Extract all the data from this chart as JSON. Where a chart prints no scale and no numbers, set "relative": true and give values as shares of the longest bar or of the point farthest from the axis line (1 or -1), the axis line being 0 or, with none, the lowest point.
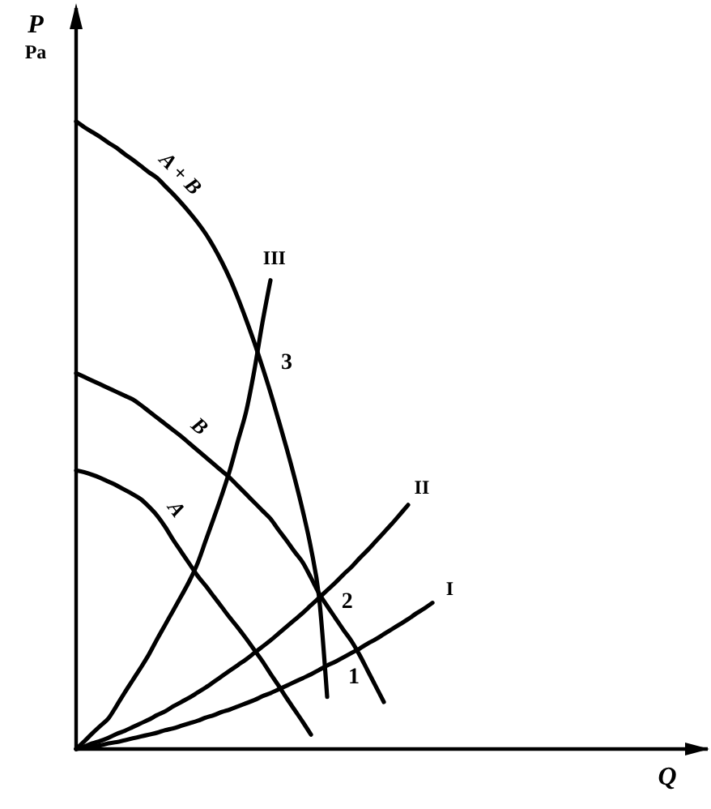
{
  "chart_data": {
    "type": "line",
    "relative": true,
    "ylabel": "P\nPa",
    "xlabel": "Q",
    "categories": [
      null,
      null,
      null,
      null,
      null,
      null,
      null,
      null,
      null,
      null,
      null,
      null,
      null,
      null,
      null,
      null,
      null,
      null,
      null,
      null,
      null,
      null,
      null,
      null,
      null,
      null,
      null,
      null,
      null,
      null,
      null,
      null,
      null,
      null,
      null,
      null,
      null,
      null,
      null,
      null,
      null,
      null,
      null,
      null,
      null,
      null,
      null,
      null,
      null,
      null,
      null,
      null,
      null,
      null,
      null,
      null,
      null,
      null,
      null,
      null,
      null,
      null,
      null,
      null,
      null,
      null,
      null,
      null,
      null,
      null,
      null,
      null,
      null,
      null,
      null,
      null,
      null,
      null,
      null
    ],
    "series": [
      {
        "name": "A + B",
        "color": "#000000",
        "values": [
          1,
          0.991,
          0.983,
          0.975,
          0.966,
          0.958,
          0.948,
          0.939,
          0.929,
          0.919,
          0.91,
          0.897,
          0.884,
          0.87,
          0.855,
          0.839,
          0.821,
          0.8,
          0.776,
          0.749,
          0.718,
          0.684,
          0.648,
          0.609,
          0.568,
          0.524,
          0.479,
          0.431,
          0.379,
          0.32,
          0.242,
          0.083,
          null,
          null,
          null,
          null,
          null,
          null,
          null,
          null,
          null,
          null,
          null,
          null,
          null,
          null,
          null,
          null,
          null,
          null,
          null,
          null,
          null,
          null,
          null,
          null,
          null,
          null,
          null,
          null,
          null,
          null,
          null,
          null,
          null,
          null,
          null,
          null,
          null,
          null,
          null,
          null,
          null,
          null,
          null,
          null,
          null,
          null,
          null
        ]
      },
      {
        "name": "B",
        "color": "#000000",
        "values": [
          0.599,
          0.593,
          0.587,
          0.581,
          0.575,
          0.569,
          0.563,
          0.557,
          0.548,
          0.538,
          0.528,
          0.518,
          0.508,
          0.498,
          0.487,
          0.476,
          0.465,
          0.454,
          0.443,
          0.432,
          0.419,
          0.406,
          0.393,
          0.38,
          0.367,
          0.349,
          0.332,
          0.314,
          0.297,
          0.273,
          0.248,
          0.228,
          0.209,
          0.19,
          0.172,
          0.15,
          0.125,
          0.1,
          0.075,
          null,
          null,
          null,
          null,
          null,
          null,
          null,
          null,
          null,
          null,
          null,
          null,
          null,
          null,
          null,
          null,
          null,
          null,
          null,
          null,
          null,
          null,
          null,
          null,
          null,
          null,
          null,
          null,
          null,
          null,
          null,
          null,
          null,
          null,
          null,
          null,
          null,
          null,
          null,
          null
        ]
      },
      {
        "name": "A",
        "color": "#000000",
        "values": [
          0.444,
          0.441,
          0.437,
          0.432,
          0.426,
          0.42,
          0.413,
          0.406,
          0.398,
          0.386,
          0.372,
          0.354,
          0.333,
          0.314,
          0.295,
          0.276,
          0.26,
          0.243,
          0.226,
          0.209,
          0.193,
          0.176,
          0.158,
          0.14,
          0.12,
          0.101,
          0.081,
          0.062,
          0.043,
          0.023,
          null,
          null,
          null,
          null,
          null,
          null,
          null,
          null,
          null,
          null,
          null,
          null,
          null,
          null,
          null,
          null,
          null,
          null,
          null,
          null,
          null,
          null,
          null,
          null,
          null,
          null,
          null,
          null,
          null,
          null,
          null,
          null,
          null,
          null,
          null,
          null,
          null,
          null,
          null,
          null,
          null,
          null,
          null,
          null,
          null,
          null,
          null,
          null,
          null
        ]
      },
      {
        "name": "III",
        "color": "#000000",
        "values": [
          0,
          0.012,
          0.025,
          0.037,
          0.049,
          0.069,
          0.09,
          0.11,
          0.13,
          0.151,
          0.175,
          0.198,
          0.221,
          0.244,
          0.268,
          0.296,
          0.332,
          0.368,
          0.405,
          0.445,
          0.492,
          0.538,
          0.603,
          0.679,
          0.747,
          null,
          null,
          null,
          null,
          null,
          null,
          null,
          null,
          null,
          null,
          null,
          null,
          null,
          null,
          null,
          null,
          null,
          null,
          null,
          null,
          null,
          null,
          null,
          null,
          null,
          null,
          null,
          null,
          null,
          null,
          null,
          null,
          null,
          null,
          null,
          null,
          null,
          null,
          null,
          null,
          null,
          null,
          null,
          null,
          null,
          null,
          null,
          null,
          null,
          null,
          null,
          null,
          null,
          null
        ]
      },
      {
        "name": "II",
        "color": "#000000",
        "values": [
          0,
          0.004,
          0.009,
          0.013,
          0.018,
          0.024,
          0.029,
          0.035,
          0.041,
          0.047,
          0.054,
          0.06,
          0.068,
          0.075,
          0.082,
          0.09,
          0.098,
          0.107,
          0.116,
          0.125,
          0.134,
          0.143,
          0.153,
          0.163,
          0.173,
          0.184,
          0.195,
          0.206,
          0.217,
          0.229,
          0.241,
          0.253,
          0.265,
          0.278,
          0.29,
          0.304,
          0.317,
          0.331,
          0.345,
          0.359,
          0.374,
          0.389,
          null,
          null,
          null,
          null,
          null,
          null,
          null,
          null,
          null,
          null,
          null,
          null,
          null,
          null,
          null,
          null,
          null,
          null,
          null,
          null,
          null,
          null,
          null,
          null,
          null,
          null,
          null,
          null,
          null,
          null,
          null,
          null,
          null,
          null,
          null,
          null,
          null
        ]
      },
      {
        "name": "I",
        "color": "#000000",
        "values": [
          0,
          0.002,
          0.004,
          0.006,
          0.009,
          0.011,
          0.014,
          0.017,
          0.02,
          0.023,
          0.026,
          0.03,
          0.033,
          0.037,
          0.041,
          0.045,
          0.05,
          0.054,
          0.059,
          0.063,
          0.068,
          0.073,
          0.078,
          0.084,
          0.089,
          0.095,
          0.101,
          0.107,
          0.113,
          0.119,
          0.126,
          0.133,
          0.139,
          0.146,
          0.153,
          0.16,
          0.168,
          0.175,
          0.183,
          0.191,
          0.199,
          0.207,
          0.216,
          0.224,
          0.233,
          null,
          null,
          null,
          null,
          null,
          null,
          null,
          null,
          null,
          null,
          null,
          null,
          null,
          null,
          null,
          null,
          null,
          null,
          null,
          null,
          null,
          null,
          null,
          null,
          null,
          null,
          null,
          null,
          null,
          null,
          null,
          null,
          null,
          null
        ]
      }
    ],
    "annotations": [
      "3",
      "2",
      "1"
    ]
  }
}
